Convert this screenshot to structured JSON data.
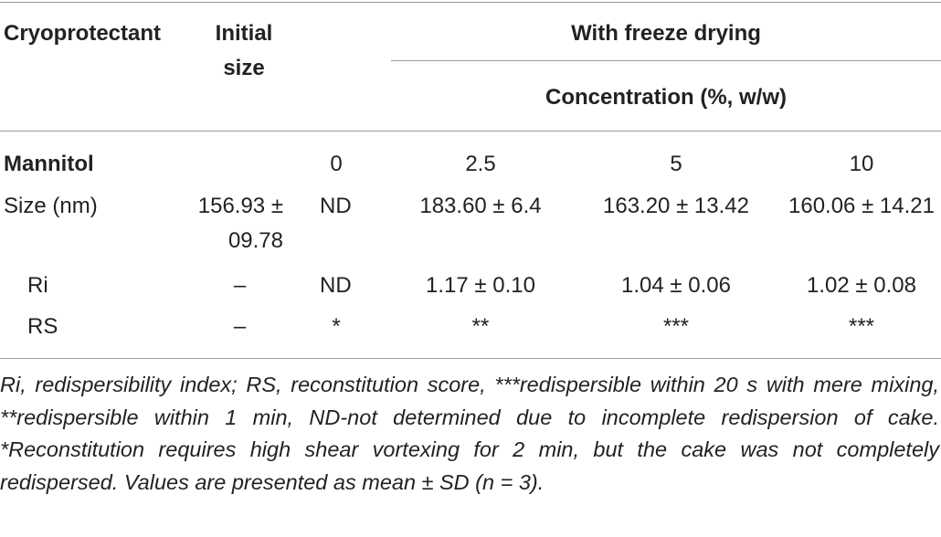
{
  "table": {
    "header": {
      "cryoprotectant": "Cryoprotectant",
      "initial_size": "Initial size",
      "group": "With freeze drying",
      "subgroup": "Concentration (%, w/w)"
    },
    "rows": [
      [
        "Mannitol",
        null,
        "0",
        "2.5",
        "5",
        "10"
      ],
      [
        "Size (nm)",
        "156.93 ± 09.78",
        "ND",
        "183.60 ± 6.4",
        "163.20 ± 13.42",
        "160.06 ± 14.21"
      ],
      [
        "Ri",
        "–",
        "ND",
        "1.17 ± 0.10",
        "1.04 ± 0.06",
        "1.02 ± 0.08"
      ],
      [
        "RS",
        "–",
        "*",
        "**",
        "***",
        "***"
      ]
    ]
  },
  "footnote": "Ri, redispersibility index; RS, reconstitution score, ***redispersible within 20 s with mere mixing, **redispersible within 1 min, ND-not determined due to incomplete redispersion of cake. *Reconstitution requires high shear vortexing for 2 min, but the cake was not completely redispersed. Values are presented as mean ± SD (n = 3)."
}
